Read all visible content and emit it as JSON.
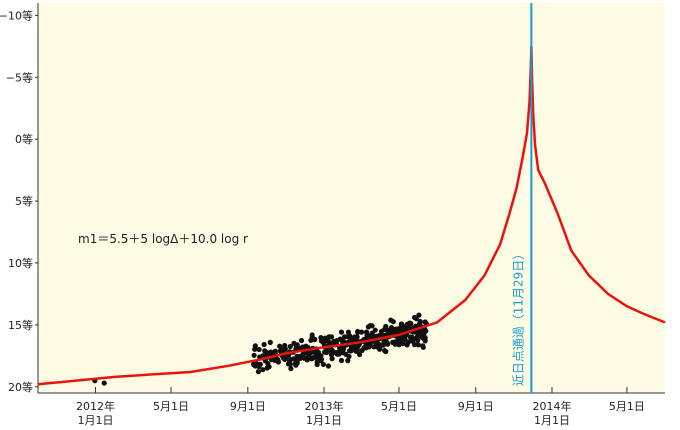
{
  "chart_data": {
    "type": "line",
    "xlabel": "",
    "ylabel": "",
    "y_inverted": true,
    "ylim": [
      20.5,
      -11
    ],
    "xlim": [
      "2011-10-01",
      "2014-07-01"
    ],
    "y_ticks": [
      {
        "value": -10,
        "label": "−10等"
      },
      {
        "value": -5,
        "label": "−5等"
      },
      {
        "value": 0,
        "label": "0等"
      },
      {
        "value": 5,
        "label": "5等"
      },
      {
        "value": 10,
        "label": "10等"
      },
      {
        "value": 15,
        "label": "15等"
      },
      {
        "value": 20,
        "label": "20等"
      }
    ],
    "x_ticks": [
      {
        "date": "2012-01-01",
        "line1": "2012年",
        "line2": "1月1日"
      },
      {
        "date": "2012-05-01",
        "line1": "5月1日",
        "line2": ""
      },
      {
        "date": "2012-09-01",
        "line1": "9月1日",
        "line2": ""
      },
      {
        "date": "2013-01-01",
        "line1": "2013年",
        "line2": "1月1日"
      },
      {
        "date": "2013-05-01",
        "line1": "5月1日",
        "line2": ""
      },
      {
        "date": "2013-09-01",
        "line1": "9月1日",
        "line2": ""
      },
      {
        "date": "2014-01-01",
        "line1": "2014年",
        "line2": "1月1日"
      },
      {
        "date": "2014-05-01",
        "line1": "5月1日",
        "line2": ""
      }
    ],
    "annotation_formula": "m1＝5.5＋5 logΔ＋10.0 log r",
    "perihelion": {
      "date": "2013-11-29",
      "label": "近日点通過（11月29日）"
    },
    "colors": {
      "background": "#fdfbe3",
      "model_curve": "#e8140c",
      "perihelion_line": "#1a9ad6",
      "observations": "#111111"
    },
    "series": [
      {
        "kind": "model_curve",
        "points": [
          [
            "2011-10-01",
            19.8
          ],
          [
            "2011-12-01",
            19.5
          ],
          [
            "2012-02-01",
            19.2
          ],
          [
            "2012-04-01",
            19.0
          ],
          [
            "2012-06-01",
            18.8
          ],
          [
            "2012-08-01",
            18.3
          ],
          [
            "2012-09-20",
            17.8
          ],
          [
            "2012-11-01",
            17.3
          ],
          [
            "2013-01-01",
            16.8
          ],
          [
            "2013-03-01",
            16.4
          ],
          [
            "2013-05-01",
            15.8
          ],
          [
            "2013-07-01",
            14.8
          ],
          [
            "2013-08-15",
            13.0
          ],
          [
            "2013-09-15",
            11.0
          ],
          [
            "2013-10-10",
            8.5
          ],
          [
            "2013-10-25",
            6.0
          ],
          [
            "2013-11-05",
            4.0
          ],
          [
            "2013-11-15",
            1.5
          ],
          [
            "2013-11-22",
            -0.5
          ],
          [
            "2013-11-26",
            -3.0
          ],
          [
            "2013-11-28",
            -5.5
          ],
          [
            "2013-11-29",
            -7.5
          ],
          [
            "2013-11-30",
            -5.0
          ],
          [
            "2013-12-02",
            -2.0
          ],
          [
            "2013-12-05",
            0.5
          ],
          [
            "2013-12-10",
            2.5
          ],
          [
            "2013-12-20",
            3.5
          ],
          [
            "2014-01-10",
            6.0
          ],
          [
            "2014-02-01",
            9.0
          ],
          [
            "2014-03-01",
            11.0
          ],
          [
            "2014-04-01",
            12.5
          ],
          [
            "2014-05-01",
            13.5
          ],
          [
            "2014-06-01",
            14.2
          ],
          [
            "2014-07-01",
            14.8
          ]
        ]
      },
      {
        "kind": "observations",
        "cluster": {
          "start": "2012-09-10",
          "end": "2013-06-15",
          "count": 420
        },
        "isolated": [
          [
            "2011-12-31",
            19.5
          ],
          [
            "2012-01-15",
            19.7
          ]
        ]
      }
    ]
  }
}
